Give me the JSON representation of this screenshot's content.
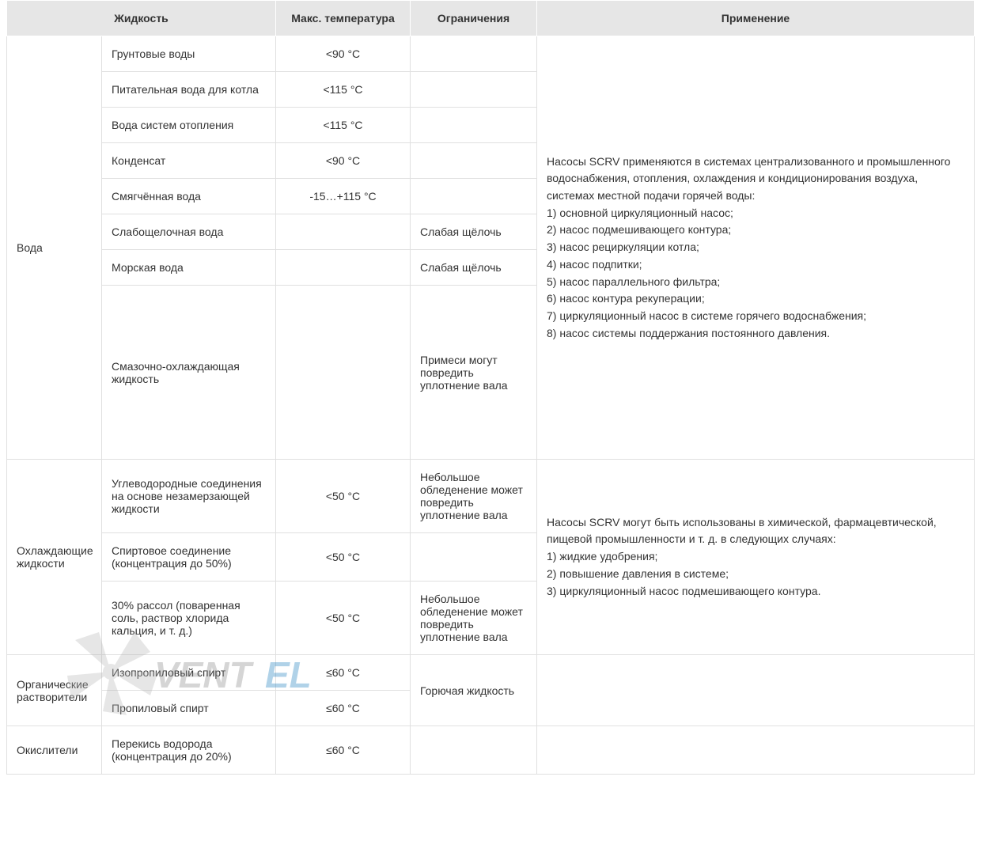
{
  "table": {
    "columns": {
      "fluid": "Жидкость",
      "temp": "Макс. температура",
      "limits": "Ограничения",
      "app": "Применение"
    },
    "groups": [
      {
        "category": "Вода",
        "rows": [
          {
            "fluid": "Грунтовые воды",
            "temp": "<90 °C",
            "limits": ""
          },
          {
            "fluid": "Питательная вода для котла",
            "temp": "<115 °C",
            "limits": ""
          },
          {
            "fluid": "Вода систем отопления",
            "temp": "<115 °C",
            "limits": ""
          },
          {
            "fluid": "Конденсат",
            "temp": "<90 °C",
            "limits": ""
          },
          {
            "fluid": "Смягчённая вода",
            "temp": "-15…+115 °C",
            "limits": ""
          },
          {
            "fluid": "Слабощелочная вода",
            "temp": "",
            "limits": "Слабая щёлочь"
          },
          {
            "fluid": "Морская вода",
            "temp": "",
            "limits": "Слабая щёлочь"
          },
          {
            "fluid": "Смазочно-охлаждающая жидкость",
            "temp": "",
            "limits": "Примеси могут повредить уплотнение вала",
            "tall": true
          }
        ],
        "application": {
          "intro": "Насосы SCRV применяются в системах централизованного и промышленного водоснабжения, отопления, охлаждения и кондиционирования воздуха, системах местной подачи горячей воды:",
          "items": [
            "1) основной циркуляционный насос;",
            "2) насос подмешивающего контура;",
            "3) насос рециркуляции котла;",
            "4) насос подпитки;",
            "5) насос параллельного фильтра;",
            "6) насос контура рекуперации;",
            "7) циркуляционный насос в системе горячего водоснабжения;",
            "8) насос системы поддержания постоянного давления."
          ]
        }
      },
      {
        "category": "Охлаждающие жидкости",
        "rows": [
          {
            "fluid": "Углеводородные соединения на основе незамерзающей жидкости",
            "temp": "<50 °C",
            "limits": "Небольшое обледенение может повредить уплотнение вала"
          },
          {
            "fluid": "Спиртовое соединение (концентрация до 50%)",
            "temp": "<50 °C",
            "limits": ""
          },
          {
            "fluid": "30% рассол (поваренная соль, раствор хлорида кальция, и т. д.)",
            "temp": "<50 °C",
            "limits": "Небольшое обледенение может повредить уплотнение вала"
          }
        ],
        "application": {
          "intro": "Насосы SCRV могут быть использованы в химической, фармацевтической, пищевой промышленности и т. д. в следующих случаях:",
          "items": [
            "1) жидкие удобрения;",
            "2) повышение давления в системе;",
            "3) циркуляционный насос подмешивающего контура."
          ]
        }
      },
      {
        "category": "Органические растворители",
        "rows": [
          {
            "fluid": "Изопропиловый спирт",
            "temp": "≤60 °C"
          },
          {
            "fluid": "Пропиловый спирт",
            "temp": "≤60 °C"
          }
        ],
        "limitsMerged": "Горючая жидкость",
        "application": {
          "intro": "",
          "items": []
        }
      },
      {
        "category": "Окислители",
        "rows": [
          {
            "fluid": "Перекись водорода (концентрация до 20%)",
            "temp": "≤60 °C",
            "limits": ""
          }
        ],
        "application": {
          "intro": "",
          "items": []
        }
      }
    ]
  },
  "watermark": {
    "text1": "VENT",
    "text2": "EL",
    "fan_color": "#b8b8b8",
    "text1_color": "#8a8a8a",
    "text2_color": "#1f7fbf"
  },
  "style": {
    "header_bg": "#e6e6e6",
    "border_color": "#e0e0e0",
    "text_color": "#333333",
    "font_size": 14
  }
}
